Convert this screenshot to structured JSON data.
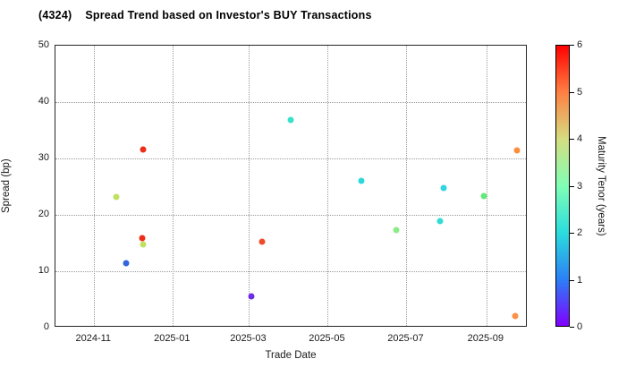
{
  "title": {
    "code": "(4324)",
    "text": "Spread Trend based on Investor's BUY Transactions"
  },
  "chart_data": {
    "type": "scatter",
    "xlabel": "Trade Date",
    "ylabel": "Spread (bp)",
    "ylim": [
      0,
      50
    ],
    "y_ticks": [
      0,
      10,
      20,
      30,
      40,
      50
    ],
    "x_range": [
      "2024-10-02",
      "2025-10-03"
    ],
    "x_ticks": [
      {
        "date": "2024-11-01",
        "label": "2024-11"
      },
      {
        "date": "2025-01-01",
        "label": "2025-01"
      },
      {
        "date": "2025-03-01",
        "label": "2025-03"
      },
      {
        "date": "2025-05-01",
        "label": "2025-05"
      },
      {
        "date": "2025-07-01",
        "label": "2025-07"
      },
      {
        "date": "2025-09-01",
        "label": "2025-09"
      }
    ],
    "grid": "dotted",
    "legend_position": "none",
    "colorbar": {
      "label": "Maturity Tenor (years)",
      "min": 0,
      "max": 6,
      "ticks": [
        0,
        1,
        2,
        3,
        4,
        5,
        6
      ],
      "colormap": "rainbow",
      "gradient_stops": [
        "#8000ff",
        "#2b80f6",
        "#2bdddd",
        "#80ffb5",
        "#d5dd80",
        "#ff8042",
        "#ff0000"
      ]
    },
    "points": [
      {
        "date": "2024-11-18",
        "spread": 23.1,
        "tenor": 3.8,
        "color": "#c0e060"
      },
      {
        "date": "2024-11-26",
        "spread": 11.4,
        "tenor": 0.9,
        "color": "#3365e0"
      },
      {
        "date": "2024-12-08",
        "spread": 15.9,
        "tenor": 5.8,
        "color": "#ee2d18"
      },
      {
        "date": "2024-12-09",
        "spread": 14.7,
        "tenor": 3.8,
        "color": "#c0e060"
      },
      {
        "date": "2024-12-09",
        "spread": 31.6,
        "tenor": 5.8,
        "color": "#ee2d18"
      },
      {
        "date": "2025-03-03",
        "spread": 5.5,
        "tenor": 0.3,
        "color": "#6c2de8"
      },
      {
        "date": "2025-03-11",
        "spread": 15.2,
        "tenor": 5.4,
        "color": "#f04c2a"
      },
      {
        "date": "2025-04-02",
        "spread": 36.9,
        "tenor": 2.2,
        "color": "#38e2c8"
      },
      {
        "date": "2025-05-27",
        "spread": 26.1,
        "tenor": 2.0,
        "color": "#2cd8de"
      },
      {
        "date": "2025-06-23",
        "spread": 17.3,
        "tenor": 3.1,
        "color": "#8cec8c"
      },
      {
        "date": "2025-07-27",
        "spread": 18.9,
        "tenor": 2.1,
        "color": "#32dcd2"
      },
      {
        "date": "2025-07-30",
        "spread": 24.7,
        "tenor": 2.0,
        "color": "#2fd6e0"
      },
      {
        "date": "2025-08-30",
        "spread": 23.4,
        "tenor": 2.7,
        "color": "#63e87a"
      },
      {
        "date": "2025-09-25",
        "spread": 31.5,
        "tenor": 4.9,
        "color": "#fc8e3c"
      },
      {
        "date": "2025-09-23",
        "spread": 2.0,
        "tenor": 4.8,
        "color": "#fa9148"
      }
    ]
  }
}
